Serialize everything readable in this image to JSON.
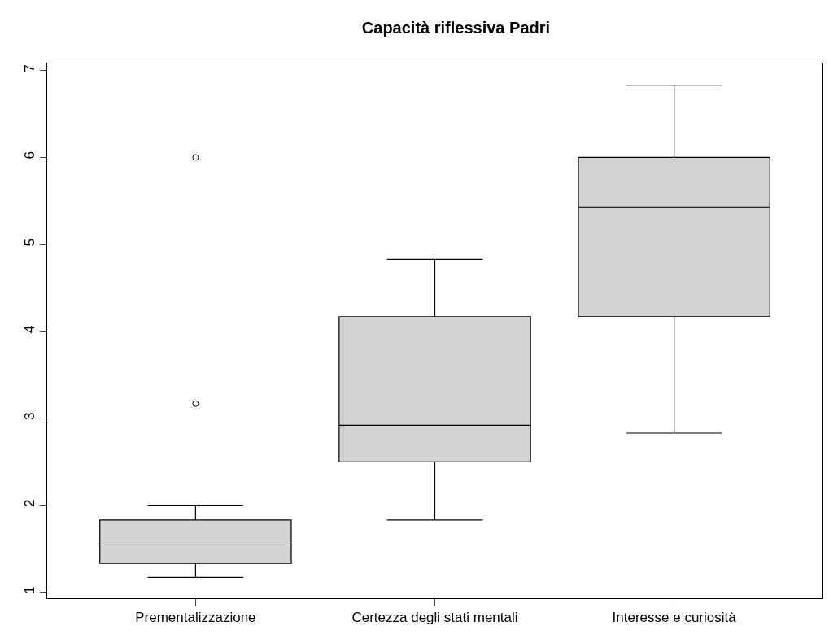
{
  "chart_data": {
    "type": "box",
    "title": "Capacità riflessiva Padri",
    "categories": [
      "Prementalizzazione",
      "Certezza degli stati mentali",
      "Interesse e curiosità"
    ],
    "boxes": [
      {
        "low": 1.17,
        "q1": 1.33,
        "median": 1.59,
        "q3": 1.83,
        "high": 2.0,
        "outliers": [
          3.17,
          6.0
        ]
      },
      {
        "low": 1.83,
        "q1": 2.5,
        "median": 2.92,
        "q3": 4.17,
        "high": 4.83
      },
      {
        "low": 2.83,
        "q1": 4.17,
        "median": 5.43,
        "q3": 6.0,
        "high": 6.83
      }
    ],
    "color": "#d3d3d3",
    "ylim": [
      0.93,
      7.08
    ],
    "yticks": [
      1,
      2,
      3,
      4,
      5,
      6,
      7
    ]
  }
}
